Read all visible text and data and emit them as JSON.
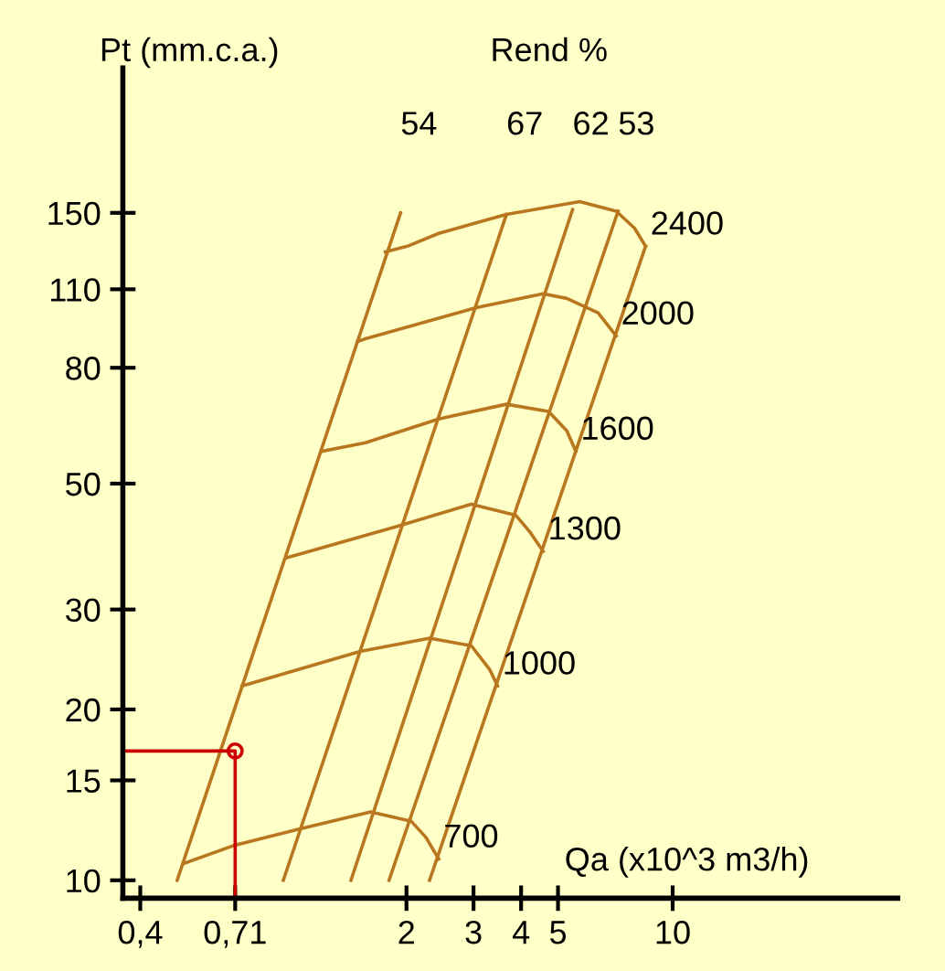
{
  "chart_data": {
    "type": "line",
    "title": "Rend %",
    "xlabel": "Qa (x10^3 m3/h)",
    "ylabel": "Pt (mm.c.a.)",
    "log": "xy",
    "grid": false,
    "legend": false,
    "xlim": [
      0.36,
      39
    ],
    "ylim": [
      9.3,
      270
    ],
    "xticks": [
      {
        "value": 0.4,
        "label": "0,4"
      },
      {
        "value": 0.71,
        "label": "0,71"
      },
      2,
      3,
      4,
      5,
      10
    ],
    "yticks": [
      10,
      15,
      20,
      30,
      50,
      80,
      110,
      150
    ],
    "series": [
      {
        "name": "2400",
        "color": "#b8761e",
        "x": [
          1.76,
          2.01,
          2.43,
          3.66,
          5.7,
          7.11,
          7.94,
          8.49
        ],
        "values": [
          128,
          131,
          138,
          149,
          157,
          151,
          141,
          131
        ]
      },
      {
        "name": "2000",
        "color": "#b8761e",
        "x": [
          1.49,
          1.56,
          3.03,
          4.57,
          5.27,
          6.37,
          7.11
        ],
        "values": [
          89,
          90,
          102,
          108,
          106,
          100,
          91
        ]
      },
      {
        "name": "1600",
        "color": "#b8761e",
        "x": [
          1.2,
          1.56,
          2.43,
          3.66,
          4.72,
          5.27,
          5.57
        ],
        "values": [
          57,
          59,
          65,
          69,
          67,
          62,
          57
        ]
      },
      {
        "name": "1300",
        "color": "#b8761e",
        "x": [
          0.97,
          1.88,
          2.96,
          3.87,
          4.23,
          4.57
        ],
        "values": [
          37,
          42,
          46,
          44,
          41,
          38
        ]
      },
      {
        "name": "1000",
        "color": "#b8761e",
        "x": [
          0.74,
          1.51,
          2.3,
          2.96,
          3.31,
          3.47
        ],
        "values": [
          22,
          25.3,
          26.7,
          25.9,
          23.5,
          22
        ]
      },
      {
        "name": "700",
        "color": "#b8761e",
        "x": [
          0.52,
          0.7,
          1.04,
          1.61,
          2.06,
          2.25,
          2.43
        ],
        "values": [
          10.7,
          11.5,
          12.3,
          13.2,
          12.7,
          11.9,
          10.9
        ]
      },
      {
        "name": "54",
        "color": "#b8761e",
        "x": [
          0.5,
          1.93
        ],
        "values": [
          10,
          150
        ]
      },
      {
        "name": "67",
        "color": "#b8761e",
        "x": [
          0.95,
          3.66
        ],
        "values": [
          10,
          149
        ]
      },
      {
        "name": "62",
        "color": "#b8761e",
        "x": [
          1.43,
          5.46
        ],
        "values": [
          10,
          152
        ]
      },
      {
        "name": "53",
        "color": "#b8761e",
        "x": [
          1.8,
          7.19
        ],
        "values": [
          10,
          151
        ]
      },
      {
        "color": "#b8761e",
        "x": [
          2.3,
          8.49
        ],
        "values": [
          10,
          131
        ]
      },
      {
        "color": "#cc0000",
        "x": [
          0.36,
          0.71,
          0.71
        ],
        "values": [
          16.9,
          16.9,
          9.3
        ]
      },
      {
        "type": "scatter",
        "marker": "circle",
        "color": "#cc0000",
        "x": [
          0.71
        ],
        "values": [
          16.9
        ]
      }
    ]
  }
}
